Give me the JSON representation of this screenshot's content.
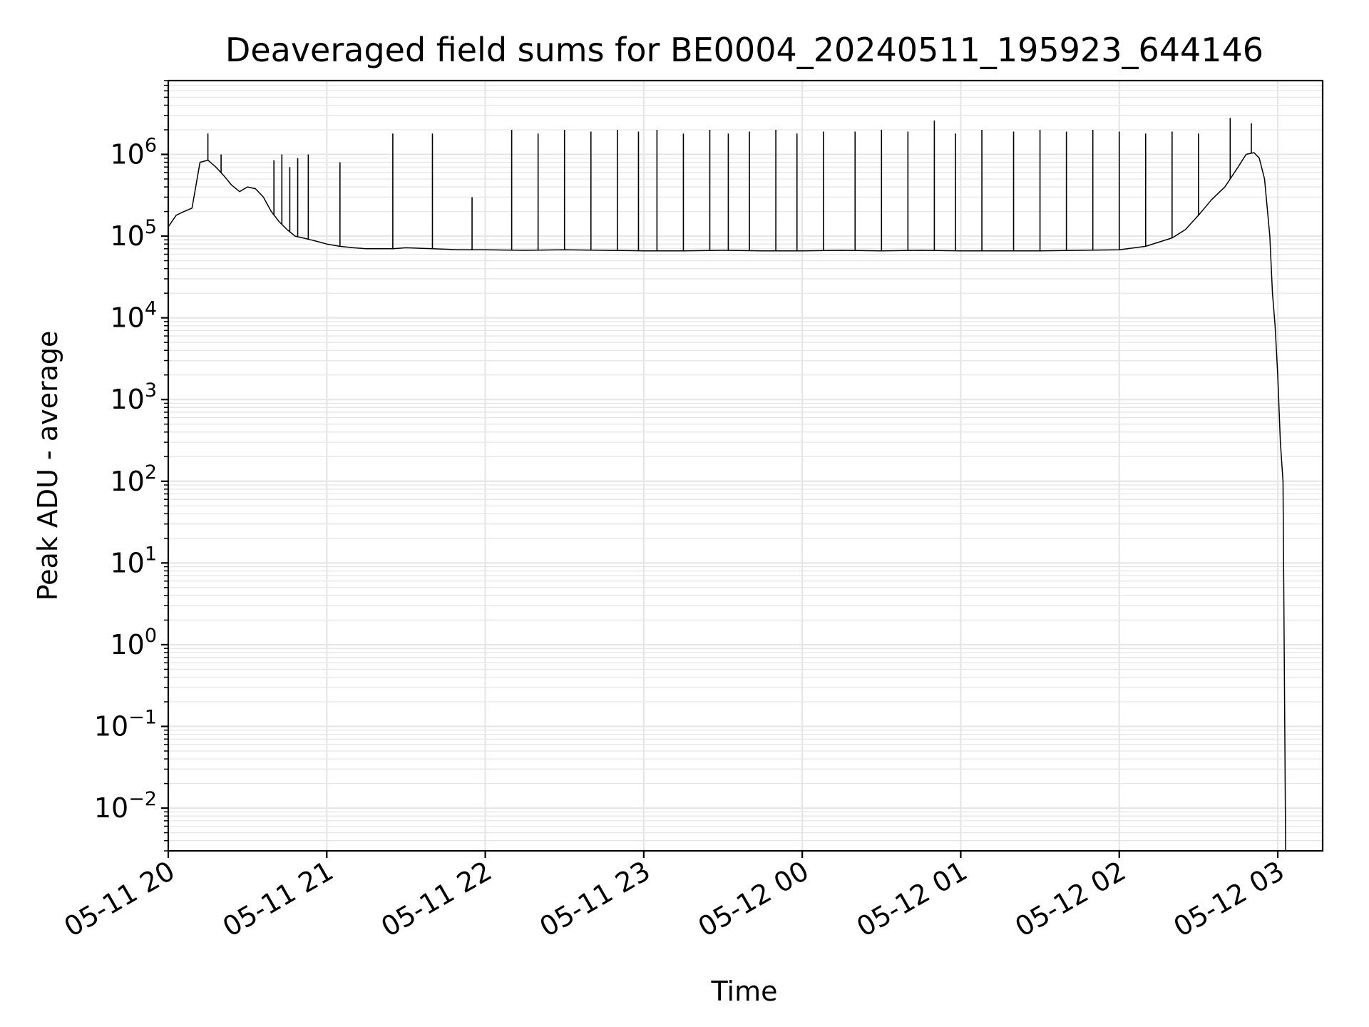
{
  "chart_data": {
    "type": "line",
    "title": "Deaveraged field sums for BE0004_20240511_195923_644146",
    "xlabel": "Time",
    "ylabel": "Peak ADU - average",
    "yscale": "log",
    "xlim": [
      "2024-05-11T20:00",
      "2024-05-12T03:17"
    ],
    "ylim": [
      0.003,
      8000000
    ],
    "grid": true,
    "legend": "none",
    "line_color": "#000000",
    "x_ticks": [
      "05-11 20",
      "05-11 21",
      "05-11 22",
      "05-11 23",
      "05-12 00",
      "05-12 01",
      "05-12 02",
      "05-12 03"
    ],
    "y_ticks": [
      {
        "base": "10",
        "exp": "−2",
        "value": 0.01
      },
      {
        "base": "10",
        "exp": "−1",
        "value": 0.1
      },
      {
        "base": "10",
        "exp": "0",
        "value": 1
      },
      {
        "base": "10",
        "exp": "1",
        "value": 10
      },
      {
        "base": "10",
        "exp": "2",
        "value": 100
      },
      {
        "base": "10",
        "exp": "3",
        "value": 1000
      },
      {
        "base": "10",
        "exp": "4",
        "value": 10000
      },
      {
        "base": "10",
        "exp": "5",
        "value": 100000
      },
      {
        "base": "10",
        "exp": "6",
        "value": 1000000
      }
    ],
    "series": [
      {
        "x": [
          "2024-05-11T20:00",
          "2024-05-11T20:03",
          "2024-05-11T20:06",
          "2024-05-11T20:09",
          "2024-05-11T20:12",
          "2024-05-11T20:15",
          "2024-05-11T20:18",
          "2024-05-11T20:21",
          "2024-05-11T20:24",
          "2024-05-11T20:27",
          "2024-05-11T20:30",
          "2024-05-11T20:33",
          "2024-05-11T20:36",
          "2024-05-11T20:39",
          "2024-05-11T20:42",
          "2024-05-11T20:45",
          "2024-05-11T20:48",
          "2024-05-11T20:51",
          "2024-05-11T20:54",
          "2024-05-11T20:57",
          "2024-05-11T21:00",
          "2024-05-11T21:05",
          "2024-05-11T21:10",
          "2024-05-11T21:15",
          "2024-05-11T21:20",
          "2024-05-11T21:25",
          "2024-05-11T21:30",
          "2024-05-11T21:40",
          "2024-05-11T21:50",
          "2024-05-11T22:00",
          "2024-05-11T22:15",
          "2024-05-11T22:30",
          "2024-05-11T22:45",
          "2024-05-11T23:00",
          "2024-05-11T23:15",
          "2024-05-11T23:30",
          "2024-05-11T23:45",
          "2024-05-12T00:00",
          "2024-05-12T00:15",
          "2024-05-12T00:30",
          "2024-05-12T00:45",
          "2024-05-12T01:00",
          "2024-05-12T01:15",
          "2024-05-12T01:30",
          "2024-05-12T01:45",
          "2024-05-12T02:00",
          "2024-05-12T02:10",
          "2024-05-12T02:20",
          "2024-05-12T02:25",
          "2024-05-12T02:30",
          "2024-05-12T02:35",
          "2024-05-12T02:40",
          "2024-05-12T02:45",
          "2024-05-12T02:48",
          "2024-05-12T02:51",
          "2024-05-12T02:53",
          "2024-05-12T02:55",
          "2024-05-12T02:57",
          "2024-05-12T02:58",
          "2024-05-12T02:59",
          "2024-05-12T03:00",
          "2024-05-12T03:01",
          "2024-05-12T03:02",
          "2024-05-12T03:03"
        ],
        "y": [
          130000,
          180000,
          200000,
          220000,
          800000,
          850000,
          700000,
          550000,
          420000,
          350000,
          400000,
          380000,
          300000,
          200000,
          150000,
          120000,
          100000,
          95000,
          90000,
          85000,
          80000,
          75000,
          72000,
          70000,
          70000,
          70000,
          72000,
          70000,
          68000,
          68000,
          67000,
          68000,
          67000,
          66000,
          66000,
          67000,
          66000,
          66000,
          67000,
          66000,
          67000,
          66000,
          66000,
          66000,
          67000,
          68000,
          75000,
          95000,
          120000,
          180000,
          280000,
          400000,
          700000,
          1000000,
          1050000,
          900000,
          500000,
          100000,
          20000,
          8000,
          2000,
          300,
          100,
          0.003
        ]
      }
    ],
    "spikes": {
      "x": [
        "2024-05-11T20:15",
        "2024-05-11T20:20",
        "2024-05-11T20:40",
        "2024-05-11T20:43",
        "2024-05-11T20:46",
        "2024-05-11T20:49",
        "2024-05-11T20:53",
        "2024-05-11T21:05",
        "2024-05-11T21:25",
        "2024-05-11T21:40",
        "2024-05-11T21:55",
        "2024-05-11T22:10",
        "2024-05-11T22:20",
        "2024-05-11T22:30",
        "2024-05-11T22:40",
        "2024-05-11T22:50",
        "2024-05-11T22:58",
        "2024-05-11T23:05",
        "2024-05-11T23:15",
        "2024-05-11T23:25",
        "2024-05-11T23:32",
        "2024-05-11T23:40",
        "2024-05-11T23:50",
        "2024-05-11T23:58",
        "2024-05-12T00:08",
        "2024-05-12T00:20",
        "2024-05-12T00:30",
        "2024-05-12T00:40",
        "2024-05-12T00:50",
        "2024-05-12T00:58",
        "2024-05-12T01:08",
        "2024-05-12T01:20",
        "2024-05-12T01:30",
        "2024-05-12T01:40",
        "2024-05-12T01:50",
        "2024-05-12T02:00",
        "2024-05-12T02:10",
        "2024-05-12T02:20",
        "2024-05-12T02:30",
        "2024-05-12T02:42",
        "2024-05-12T02:50"
      ],
      "y": [
        1800000,
        1000000,
        850000,
        1000000,
        700000,
        900000,
        1000000,
        800000,
        1800000,
        1800000,
        300000,
        2000000,
        1800000,
        2000000,
        1900000,
        2000000,
        1900000,
        2000000,
        1800000,
        2000000,
        1800000,
        1900000,
        2000000,
        1800000,
        1900000,
        1900000,
        2000000,
        1900000,
        2600000,
        1800000,
        2000000,
        1900000,
        2000000,
        1900000,
        2000000,
        1900000,
        1800000,
        1900000,
        1800000,
        2800000,
        2400000
      ]
    }
  }
}
